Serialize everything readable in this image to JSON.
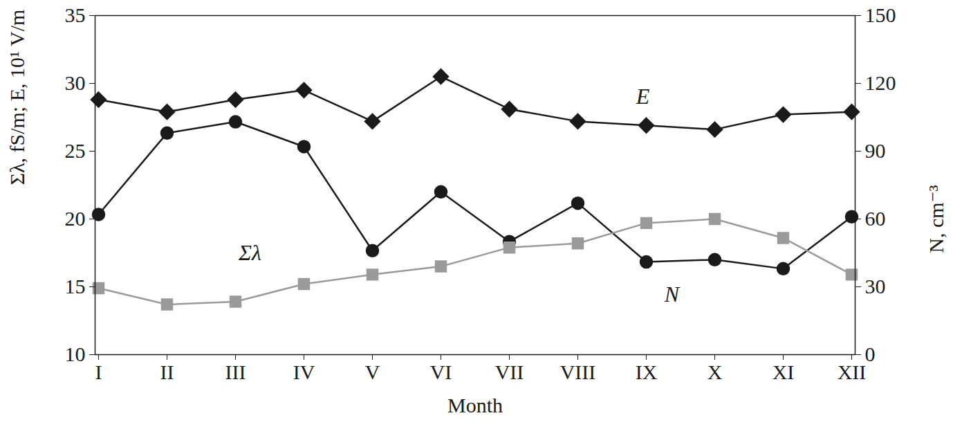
{
  "chart_data": {
    "type": "line",
    "x_label": "Month",
    "y_label": "Σλ, fS/m; E, 10¹ V/m",
    "y2_label": "N, cm⁻³",
    "categories": [
      "I",
      "II",
      "III",
      "IV",
      "V",
      "VI",
      "VII",
      "VIII",
      "IX",
      "X",
      "XI",
      "XII"
    ],
    "ylim": [
      10,
      35
    ],
    "yticks": [
      10,
      15,
      20,
      25,
      30,
      35
    ],
    "y2lim": [
      0,
      150
    ],
    "y2ticks": [
      0,
      30,
      60,
      90,
      120,
      150
    ],
    "grid": false,
    "series": [
      {
        "name": "E",
        "color": "#1a1a1a",
        "marker": "diamond",
        "line_style": "solid",
        "axis": "y",
        "values": [
          28.8,
          27.9,
          28.8,
          29.5,
          27.2,
          30.5,
          28.1,
          27.2,
          26.9,
          26.6,
          27.7,
          27.9
        ]
      },
      {
        "name": "N",
        "color": "#1a1a1a",
        "marker": "circle",
        "line_style": "solid",
        "axis": "y2",
        "values": [
          62,
          98,
          103,
          92,
          46,
          72,
          50,
          67,
          41,
          42,
          38,
          61
        ]
      },
      {
        "name": "Σλ",
        "color": "#9a9a9a",
        "marker": "square",
        "line_style": "solid",
        "axis": "y",
        "values": [
          14.9,
          13.7,
          13.9,
          15.2,
          15.9,
          16.5,
          17.9,
          18.2,
          19.7,
          20.0,
          18.6,
          15.9
        ]
      }
    ]
  }
}
